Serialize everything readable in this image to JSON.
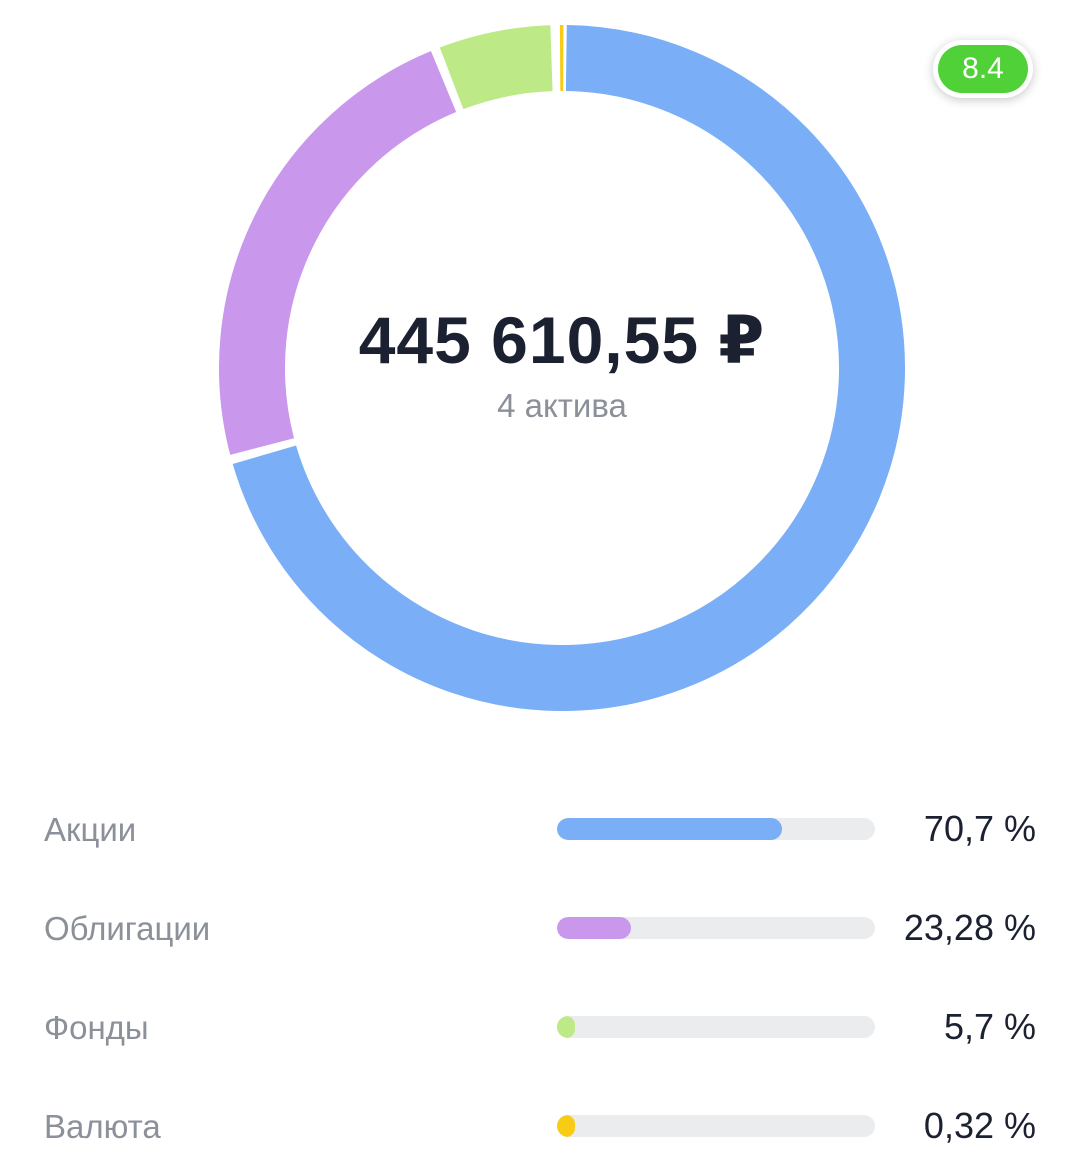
{
  "summary": {
    "total": "445 610,55 ₽",
    "assets_count": "4 актива",
    "score": "8.4"
  },
  "colors": {
    "stocks": "#7aaef6",
    "bonds": "#c998ec",
    "funds": "#bde987",
    "currency": "#f8cc15",
    "track": "#ebecee",
    "score": "#4fd137"
  },
  "chart_data": {
    "type": "pie",
    "categories": [
      "Акции",
      "Облигации",
      "Фонды",
      "Валюта"
    ],
    "values": [
      70.7,
      23.28,
      5.7,
      0.32
    ],
    "colors": [
      "#7aaef6",
      "#c998ec",
      "#bde987",
      "#f8cc15"
    ],
    "title": ""
  },
  "legend": [
    {
      "label": "Акции",
      "percent": "70,7 %",
      "value": 70.7,
      "color": "#7aaef6"
    },
    {
      "label": "Облигации",
      "percent": "23,28 %",
      "value": 23.28,
      "color": "#c998ec"
    },
    {
      "label": "Фонды",
      "percent": "5,7 %",
      "value": 5.7,
      "color": "#bde987"
    },
    {
      "label": "Валюта",
      "percent": "0,32 %",
      "value": 0.32,
      "color": "#f8cc15"
    }
  ]
}
